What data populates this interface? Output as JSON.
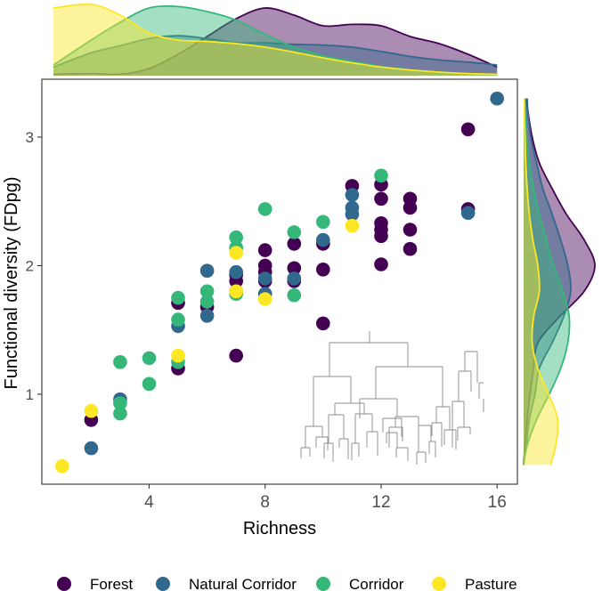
{
  "chart_data": {
    "type": "scatter",
    "title": "",
    "xlabel": "Richness",
    "ylabel": "Functional diversity (FDpg)",
    "xlim": [
      0.3,
      16.7
    ],
    "ylim": [
      0.3,
      3.45
    ],
    "xticks": [
      4,
      8,
      12,
      16
    ],
    "xtick_labels": [
      "4",
      "8",
      "12",
      "16"
    ],
    "yticks": [
      1,
      2,
      3
    ],
    "ytick_labels": [
      "1",
      "2",
      "3"
    ],
    "grid": false,
    "legend_position": "bottom",
    "series": [
      {
        "name": "Forest",
        "color": "#440154",
        "points": [
          [
            2,
            0.8
          ],
          [
            5,
            1.2
          ],
          [
            5,
            1.71
          ],
          [
            6,
            1.68
          ],
          [
            7,
            1.3
          ],
          [
            7,
            1.88
          ],
          [
            7,
            1.93
          ],
          [
            8,
            1.88
          ],
          [
            8,
            1.95
          ],
          [
            8,
            2.0
          ],
          [
            8,
            2.12
          ],
          [
            9,
            1.88
          ],
          [
            9,
            1.98
          ],
          [
            9,
            2.17
          ],
          [
            10,
            1.55
          ],
          [
            10,
            1.97
          ],
          [
            10,
            2.17
          ],
          [
            11,
            2.62
          ],
          [
            12,
            2.01
          ],
          [
            12,
            2.23
          ],
          [
            12,
            2.28
          ],
          [
            12,
            2.33
          ],
          [
            12,
            2.52
          ],
          [
            12,
            2.63
          ],
          [
            13,
            2.13
          ],
          [
            13,
            2.28
          ],
          [
            13,
            2.45
          ],
          [
            13,
            2.52
          ],
          [
            15,
            2.44
          ],
          [
            15,
            3.06
          ]
        ]
      },
      {
        "name": "Natural Corridor",
        "color": "#31688E",
        "points": [
          [
            2,
            0.58
          ],
          [
            3,
            0.96
          ],
          [
            5,
            1.53
          ],
          [
            6,
            1.61
          ],
          [
            6,
            1.96
          ],
          [
            7,
            1.8
          ],
          [
            7,
            1.95
          ],
          [
            8,
            1.78
          ],
          [
            8,
            1.9
          ],
          [
            9,
            1.9
          ],
          [
            10,
            2.2
          ],
          [
            11,
            2.4
          ],
          [
            11,
            2.45
          ],
          [
            11,
            2.55
          ],
          [
            15,
            2.41
          ],
          [
            16,
            3.3
          ]
        ]
      },
      {
        "name": "Corridor",
        "color": "#35B779",
        "points": [
          [
            3,
            0.85
          ],
          [
            3,
            0.93
          ],
          [
            3,
            1.25
          ],
          [
            4,
            1.08
          ],
          [
            4,
            1.28
          ],
          [
            5,
            1.25
          ],
          [
            5,
            1.58
          ],
          [
            5,
            1.75
          ],
          [
            6,
            1.8
          ],
          [
            6,
            1.72
          ],
          [
            7,
            1.78
          ],
          [
            7,
            2.14
          ],
          [
            7,
            2.22
          ],
          [
            8,
            2.44
          ],
          [
            9,
            1.77
          ],
          [
            9,
            2.26
          ],
          [
            10,
            2.34
          ],
          [
            12,
            2.7
          ]
        ]
      },
      {
        "name": "Pasture",
        "color": "#FDE725",
        "points": [
          [
            1,
            0.44
          ],
          [
            2,
            0.87
          ],
          [
            5,
            1.3
          ],
          [
            7,
            1.8
          ],
          [
            7,
            2.1
          ],
          [
            8,
            1.74
          ],
          [
            11,
            2.31
          ]
        ]
      }
    ],
    "marginal_density_x": {
      "x": [
        0.7,
        2,
        3,
        4,
        5,
        6,
        7,
        8,
        9,
        10,
        11,
        12,
        13,
        14,
        15,
        16
      ],
      "series": [
        {
          "name": "Forest",
          "values": [
            0.02,
            0.03,
            0.02,
            0.1,
            0.3,
            0.55,
            0.8,
            0.95,
            0.85,
            0.7,
            0.72,
            0.7,
            0.55,
            0.45,
            0.3,
            0.12
          ]
        },
        {
          "name": "Natural Corridor",
          "values": [
            0.12,
            0.32,
            0.42,
            0.52,
            0.56,
            0.52,
            0.46,
            0.46,
            0.44,
            0.43,
            0.4,
            0.34,
            0.27,
            0.22,
            0.19,
            0.15
          ]
        },
        {
          "name": "Corridor",
          "values": [
            0.15,
            0.5,
            0.75,
            0.95,
            0.97,
            0.9,
            0.78,
            0.58,
            0.4,
            0.28,
            0.2,
            0.13,
            0.08,
            0.04,
            0.02,
            0.01
          ]
        },
        {
          "name": "Pasture",
          "values": [
            0.95,
            1.0,
            0.85,
            0.6,
            0.5,
            0.48,
            0.45,
            0.4,
            0.33,
            0.25,
            0.18,
            0.12,
            0.08,
            0.05,
            0.03,
            0.02
          ]
        }
      ]
    },
    "marginal_density_y": {
      "y": [
        0.45,
        0.6,
        0.8,
        1.0,
        1.2,
        1.4,
        1.6,
        1.8,
        2.0,
        2.2,
        2.4,
        2.6,
        2.8,
        3.0,
        3.2,
        3.3
      ],
      "series": [
        {
          "name": "Forest",
          "values": [
            0.0,
            0.02,
            0.05,
            0.09,
            0.14,
            0.2,
            0.5,
            0.85,
            1.0,
            0.85,
            0.6,
            0.4,
            0.22,
            0.12,
            0.06,
            0.04
          ]
        },
        {
          "name": "Natural Corridor",
          "values": [
            0.0,
            0.04,
            0.08,
            0.16,
            0.22,
            0.4,
            0.56,
            0.66,
            0.62,
            0.52,
            0.4,
            0.27,
            0.18,
            0.1,
            0.06,
            0.05
          ]
        },
        {
          "name": "Corridor",
          "values": [
            0.0,
            0.05,
            0.18,
            0.36,
            0.52,
            0.62,
            0.64,
            0.55,
            0.42,
            0.32,
            0.22,
            0.14,
            0.08,
            0.04,
            0.02,
            0.02
          ]
        },
        {
          "name": "Pasture",
          "values": [
            0.38,
            0.45,
            0.48,
            0.35,
            0.2,
            0.12,
            0.14,
            0.22,
            0.2,
            0.13,
            0.08,
            0.05,
            0.03,
            0.02,
            0.01,
            0.01
          ]
        }
      ]
    },
    "inset": "dendrogram"
  }
}
